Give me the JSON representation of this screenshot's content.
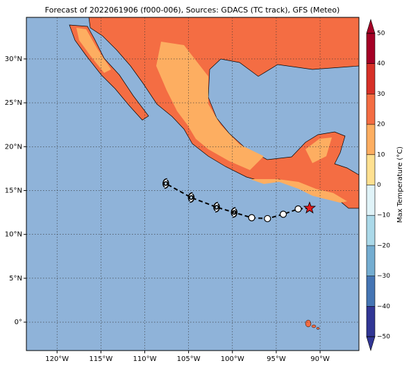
{
  "chart_data": {
    "type": "map",
    "title": "Forecast of 2022061906 (f000-006), Sources: GDACS (TC track), GFS (Meteo)",
    "xlim": [
      -123.5,
      -85.57
    ],
    "ylim": [
      -3.24,
      34.74
    ],
    "xticks": [
      {
        "value": -120,
        "label": "120°W"
      },
      {
        "value": -115,
        "label": "115°W"
      },
      {
        "value": -110,
        "label": "110°W"
      },
      {
        "value": -105,
        "label": "105°W"
      },
      {
        "value": -100,
        "label": "100°W"
      },
      {
        "value": -95,
        "label": "95°W"
      },
      {
        "value": -90,
        "label": "90°W"
      }
    ],
    "yticks": [
      {
        "value": 0,
        "label": "0°"
      },
      {
        "value": 5,
        "label": "5°N"
      },
      {
        "value": 10,
        "label": "10°N"
      },
      {
        "value": 15,
        "label": "15°N"
      },
      {
        "value": 20,
        "label": "20°N"
      },
      {
        "value": 25,
        "label": "25°N"
      },
      {
        "value": 30,
        "label": "30°N"
      }
    ],
    "grid": true,
    "track": {
      "lon": [
        -91.2,
        -92.5,
        -94.2,
        -96.0,
        -97.8,
        -99.8,
        -101.8,
        -104.7,
        -107.6
      ],
      "lat": [
        13.0,
        12.9,
        12.3,
        11.8,
        11.9,
        12.5,
        13.1,
        14.2,
        15.8
      ],
      "symbol": [
        "star",
        "circle",
        "circle",
        "circle",
        "circle",
        "storm",
        "storm",
        "storm",
        "storm"
      ]
    },
    "colorbar": {
      "label": "Max Temperature (°C)",
      "lim": [
        -50,
        50
      ],
      "ticks": [
        {
          "value": -50,
          "label": "−50"
        },
        {
          "value": -40,
          "label": "−40"
        },
        {
          "value": -30,
          "label": "−30"
        },
        {
          "value": -20,
          "label": "−20"
        },
        {
          "value": -10,
          "label": "−10"
        },
        0,
        10,
        20,
        30,
        40,
        50
      ],
      "colors": [
        "#313695",
        "#4575b4",
        "#74add1",
        "#abd9e9",
        "#e0f3f8",
        "#fee090",
        "#fdae61",
        "#f46d43",
        "#d73027",
        "#a50026"
      ]
    }
  }
}
